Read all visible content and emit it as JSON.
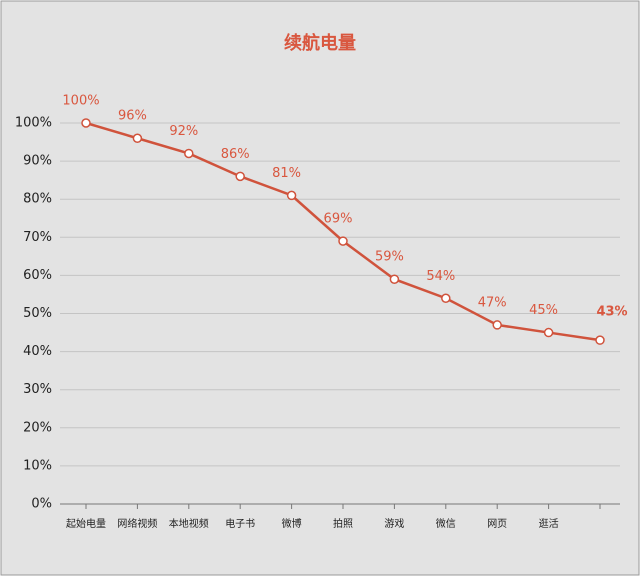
{
  "chart_data": {
    "type": "line",
    "title": "续航电量",
    "categories": [
      "起始电量",
      "网络视频",
      "本地视频",
      "电子书",
      "微博",
      "拍照",
      "游戏",
      "微信",
      "网页",
      "逛活",
      null
    ],
    "values": [
      100,
      96,
      92,
      86,
      81,
      69,
      59,
      54,
      47,
      45,
      43
    ],
    "value_labels": [
      "100%",
      "96%",
      "92%",
      "86%",
      "81%",
      "69%",
      "59%",
      "54%",
      "47%",
      "45%",
      "43%"
    ],
    "color": "#d0533c",
    "ylim": [
      0,
      100
    ],
    "yticks": [
      {
        "value": 0,
        "label": "0%"
      },
      {
        "value": 10,
        "label": "10%"
      },
      {
        "value": 20,
        "label": "20%"
      },
      {
        "value": 30,
        "label": "30%"
      },
      {
        "value": 40,
        "label": "40%"
      },
      {
        "value": 50,
        "label": "50%"
      },
      {
        "value": 60,
        "label": "60%"
      },
      {
        "value": 70,
        "label": "70%"
      },
      {
        "value": 80,
        "label": "80%"
      },
      {
        "value": 90,
        "label": "90%"
      },
      {
        "value": 100,
        "label": "100%"
      }
    ],
    "grid": true
  }
}
